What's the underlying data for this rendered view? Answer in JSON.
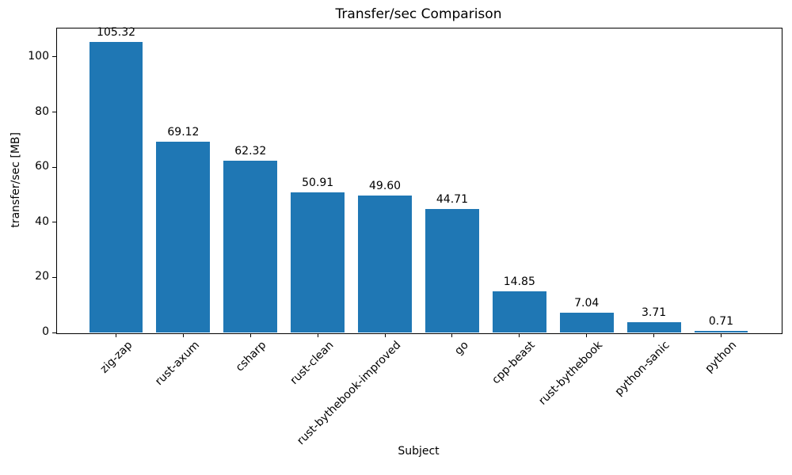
{
  "chart_data": {
    "type": "bar",
    "title": "Transfer/sec Comparison",
    "xlabel": "Subject",
    "ylabel": "transfer/sec [MB]",
    "categories": [
      "zig-zap",
      "rust-axum",
      "csharp",
      "rust-clean",
      "rust-bythebook-improved",
      "go",
      "cpp-beast",
      "rust-bythebook",
      "python-sanic",
      "python"
    ],
    "values": [
      105.32,
      69.12,
      62.32,
      50.91,
      49.6,
      44.71,
      14.85,
      7.04,
      3.71,
      0.71
    ],
    "value_labels": [
      "105.32",
      "69.12",
      "62.32",
      "50.91",
      "49.60",
      "44.71",
      "14.85",
      "7.04",
      "3.71",
      "0.71"
    ],
    "y_ticks": [
      0,
      20,
      40,
      60,
      80,
      100
    ],
    "ylim": [
      0,
      110.6
    ],
    "bar_color": "#1f77b4",
    "grid": false,
    "legend_position": "none",
    "x_tick_rotation_deg": 45
  }
}
